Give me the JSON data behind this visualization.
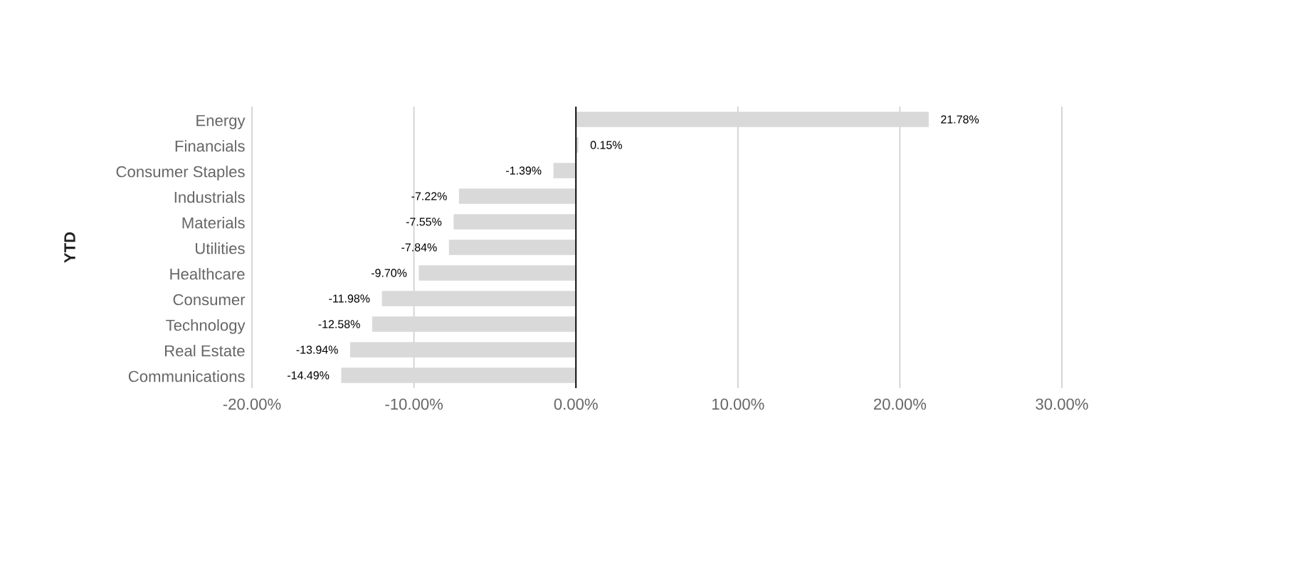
{
  "chart_data": {
    "type": "bar",
    "orientation": "horizontal",
    "ylabel": "YTD",
    "categories": [
      "Energy",
      "Financials",
      "Consumer Staples",
      "Industrials",
      "Materials",
      "Utilities",
      "Healthcare",
      "Consumer",
      "Technology",
      "Real Estate",
      "Communications"
    ],
    "values": [
      21.78,
      0.15,
      -1.39,
      -7.22,
      -7.55,
      -7.84,
      -9.7,
      -11.98,
      -12.58,
      -13.94,
      -14.49
    ],
    "value_labels": [
      "21.78%",
      "0.15%",
      "-1.39%",
      "-7.22%",
      "-7.55%",
      "-7.84%",
      "-9.70%",
      "-11.98%",
      "-12.58%",
      "-13.94%",
      "-14.49%"
    ],
    "color": "#d9d9d9",
    "xlim": [
      -20,
      30
    ],
    "xticks": [
      {
        "value": -20,
        "label": "-20.00%"
      },
      {
        "value": -10,
        "label": "-10.00%"
      },
      {
        "value": 0,
        "label": "0.00%"
      },
      {
        "value": 10,
        "label": "10.00%"
      },
      {
        "value": 20,
        "label": "20.00%"
      },
      {
        "value": 30,
        "label": "30.00%"
      }
    ],
    "grid": "x"
  }
}
